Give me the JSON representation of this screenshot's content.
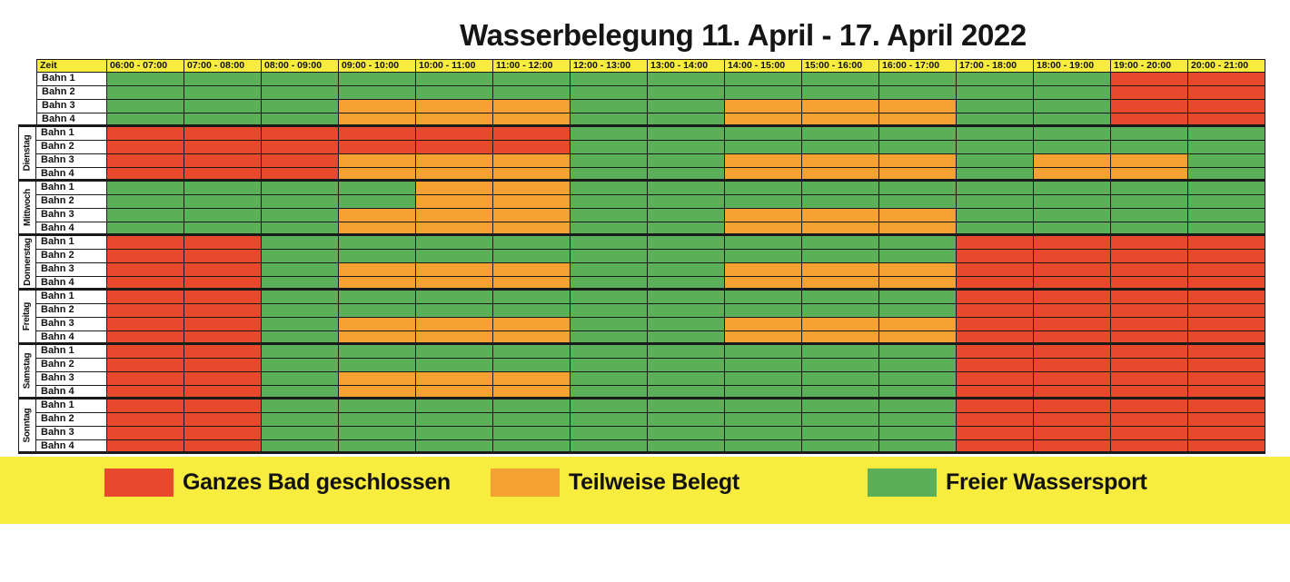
{
  "title": "Wasserbelegung 11. April - 17. April 2022",
  "colors": {
    "red": "#e8482c",
    "orange": "#f6a233",
    "green": "#5aaf58",
    "yellow": "#f8ec3f",
    "grid": "#1a1a1a"
  },
  "table": {
    "corner_label": "Zeit",
    "time_slots": [
      "06:00 - 07:00",
      "07:00 - 08:00",
      "08:00 - 09:00",
      "09:00 - 10:00",
      "10:00 - 11:00",
      "11:00 - 12:00",
      "12:00 - 13:00",
      "13:00 - 14:00",
      "14:00 - 15:00",
      "15:00 - 16:00",
      "16:00 - 17:00",
      "17:00 - 18:00",
      "18:00 - 19:00",
      "19:00 - 20:00",
      "20:00 - 21:00"
    ],
    "lane_labels": [
      "Bahn 1",
      "Bahn 2",
      "Bahn 3",
      "Bahn 4"
    ],
    "cell_code_meaning": {
      "R": "Ganzes Bad geschlossen",
      "O": "Teilweise Belegt",
      "G": "Freier Wassersport"
    },
    "days": [
      {
        "label": "",
        "lanes": [
          "GGGGGGGGGGGGGRR",
          "GGGGGGGGGGGGGRR",
          "GGGOOOGGOOOGGRR",
          "GGGOOOGGOOOGGRR"
        ]
      },
      {
        "label": "Dienstag",
        "lanes": [
          "RRRRRRGGGGGGGGG",
          "RRRRRRGGGGGGGGG",
          "RRROOOGGOOOGOOG",
          "RRROOOGGOOOGOOG"
        ]
      },
      {
        "label": "Mittwoch",
        "lanes": [
          "GGGGOOGGGGGGGGG",
          "GGGGOOGGGGGGGGG",
          "GGGOOOGGOOOGGGG",
          "GGGOOOGGOOOGGGG"
        ]
      },
      {
        "label": "Donnerstag",
        "lanes": [
          "RRGGGGGGGGGRRRR",
          "RRGGGGGGGGGRRRR",
          "RRGOOOGGOOORRRR",
          "RRGOOOGGOOORRRR"
        ]
      },
      {
        "label": "Freitag",
        "lanes": [
          "RRGGGGGGGGGRRRR",
          "RRGGGGGGGGGRRRR",
          "RRGOOOGGOOORRRR",
          "RRGOOOGGOOORRRR"
        ]
      },
      {
        "label": "Samstag",
        "lanes": [
          "RRGGGGGGGGGRRRR",
          "RRGGGGGGGGGRRRR",
          "RRGOOOGGGGGRRRR",
          "RRGOOOGGGGGRRRR"
        ]
      },
      {
        "label": "Sonntag",
        "lanes": [
          "RRGGGGGGGGGRRRR",
          "RRGGGGGGGGGRRRR",
          "RRGGGGGGGGGRRRR",
          "RRGGGGGGGGGRRRR"
        ]
      }
    ]
  },
  "legend": [
    {
      "color": "red",
      "label": "Ganzes Bad geschlossen"
    },
    {
      "color": "orange",
      "label": "Teilweise Belegt"
    },
    {
      "color": "green",
      "label": "Freier Wassersport"
    }
  ]
}
